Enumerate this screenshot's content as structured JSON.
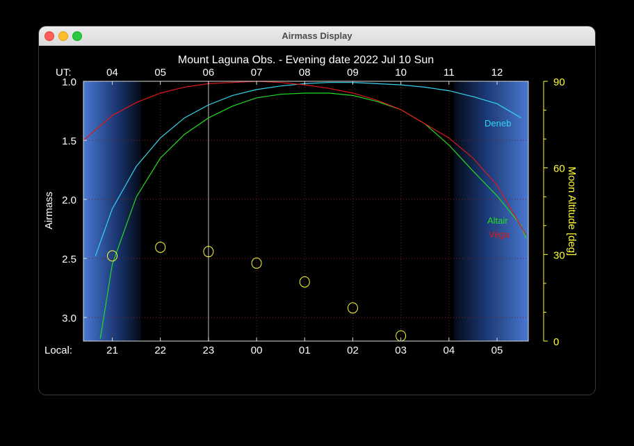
{
  "window": {
    "title": "Airmass Display"
  },
  "chart_data": {
    "type": "line",
    "title": "Mount Laguna Obs. - Evening date 2022 Jul 10  Sun",
    "top_axis_label": "UT:",
    "bottom_axis_label": "Local:",
    "ylabel": "Airmass",
    "y2label": "Moon Altitude [deg]",
    "ut_ticks": [
      "04",
      "05",
      "06",
      "07",
      "08",
      "09",
      "10",
      "11",
      "12"
    ],
    "local_ticks": [
      "21",
      "22",
      "23",
      "00",
      "01",
      "02",
      "03",
      "04",
      "05"
    ],
    "x_unit": "hours UT (tick at 04 = 4.0)",
    "xlim": [
      3.4,
      12.65
    ],
    "ylim": [
      1.0,
      3.2
    ],
    "yticks": [
      "1.0",
      "1.5",
      "2.0",
      "2.5",
      "3.0"
    ],
    "y2lim": [
      0,
      90
    ],
    "y2ticks": [
      "0",
      "30",
      "60",
      "90"
    ],
    "grid": true,
    "twilight": {
      "evening_end_ut": 4.6,
      "morning_start_ut": 11.1
    },
    "current_time_ut": 6.0,
    "series": [
      {
        "name": "Deneb",
        "color": "#33d6f0",
        "x": [
          3.65,
          4.0,
          4.5,
          5.0,
          5.5,
          6.0,
          6.5,
          7.0,
          7.5,
          8.0,
          8.5,
          9.0,
          9.5,
          10.0,
          10.5,
          11.0,
          11.5,
          12.0,
          12.5
        ],
        "y": [
          2.48,
          2.08,
          1.72,
          1.48,
          1.31,
          1.2,
          1.12,
          1.07,
          1.04,
          1.02,
          1.01,
          1.01,
          1.02,
          1.03,
          1.05,
          1.08,
          1.13,
          1.19,
          1.31
        ]
      },
      {
        "name": "Altair",
        "color": "#22dd22",
        "x": [
          3.75,
          4.0,
          4.5,
          5.0,
          5.5,
          6.0,
          6.5,
          7.0,
          7.5,
          8.0,
          8.5,
          9.0,
          9.5,
          10.0,
          10.5,
          11.0,
          11.5,
          12.0,
          12.5,
          12.6
        ],
        "y": [
          3.18,
          2.55,
          1.98,
          1.65,
          1.45,
          1.31,
          1.21,
          1.14,
          1.11,
          1.1,
          1.1,
          1.12,
          1.17,
          1.24,
          1.36,
          1.54,
          1.76,
          1.97,
          2.22,
          2.33
        ]
      },
      {
        "name": "Vega",
        "color": "#dd1818",
        "x": [
          3.4,
          4.0,
          4.5,
          5.0,
          5.5,
          6.0,
          6.5,
          7.0,
          7.5,
          8.0,
          8.5,
          9.0,
          9.5,
          10.0,
          10.5,
          11.0,
          11.5,
          12.0,
          12.5,
          12.6
        ],
        "y": [
          1.5,
          1.29,
          1.18,
          1.1,
          1.05,
          1.02,
          1.01,
          1.0,
          1.01,
          1.03,
          1.06,
          1.1,
          1.16,
          1.24,
          1.36,
          1.48,
          1.65,
          1.88,
          2.23,
          2.3
        ]
      }
    ],
    "moon": {
      "name": "Moon altitude",
      "color": "#ffff33",
      "x": [
        4.0,
        5.0,
        6.0,
        7.0,
        8.0,
        9.0,
        10.0
      ],
      "altitude_deg": [
        29.5,
        32.5,
        31.0,
        27.0,
        20.5,
        11.5,
        1.8
      ]
    }
  }
}
